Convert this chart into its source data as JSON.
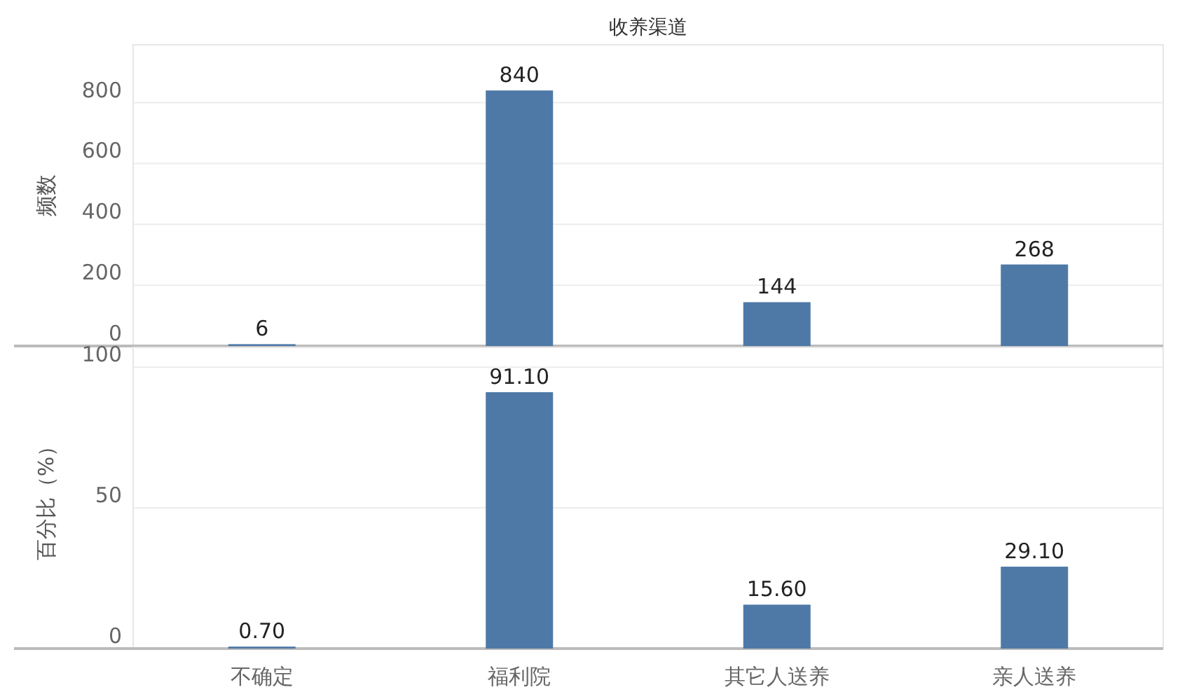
{
  "chart_data": [
    {
      "type": "bar",
      "title": "收养渠道",
      "ylabel": "频数",
      "categories": [
        null,
        null,
        null,
        null
      ],
      "values": [
        6,
        840,
        144,
        268
      ],
      "color": "#4e79a7",
      "ylim": [
        0,
        990
      ],
      "yticks": [
        0,
        200,
        400,
        600,
        800
      ],
      "grid": "y",
      "data_labels": true,
      "tick_labels": "y"
    },
    {
      "type": "bar",
      "ylabel": "百分比（%）",
      "categories": [
        "不确定",
        "福利院",
        "其它人送养",
        "亲人送养"
      ],
      "values": [
        0.7,
        91.1,
        15.6,
        29.1
      ],
      "value_labels": [
        "0.70",
        "91.10",
        "15.60",
        "29.10"
      ],
      "color": "#4e79a7",
      "ylim": [
        0,
        107
      ],
      "yticks": [
        0,
        50,
        100
      ],
      "grid": "y"
    }
  ]
}
